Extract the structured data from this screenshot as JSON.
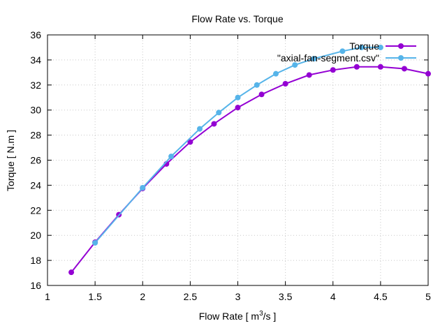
{
  "chart_data": {
    "type": "line",
    "title": "Flow Rate vs. Torque",
    "xlabel": "Flow Rate [ m³/s ]",
    "xlabel_parts": {
      "before": "Flow Rate [ m",
      "sup": "3",
      "after": "/s ]"
    },
    "ylabel": "Torque [ N.m ]",
    "xlim": [
      1,
      5
    ],
    "ylim": [
      16,
      36
    ],
    "xticks": [
      1,
      1.5,
      2,
      2.5,
      3,
      3.5,
      4,
      4.5,
      5
    ],
    "xtick_labels": [
      "1",
      "1.5",
      "2",
      "2.5",
      "3",
      "3.5",
      "4",
      "4.5",
      "5"
    ],
    "yticks": [
      16,
      18,
      20,
      22,
      24,
      26,
      28,
      30,
      32,
      34,
      36
    ],
    "ytick_labels": [
      "16",
      "18",
      "20",
      "22",
      "24",
      "26",
      "28",
      "30",
      "32",
      "34",
      "36"
    ],
    "grid": true,
    "legend_position": "top-right",
    "series": [
      {
        "name": "Torque",
        "color": "#9400d3",
        "x": [
          1.25,
          1.5,
          1.75,
          2.0,
          2.25,
          2.5,
          2.75,
          3.0,
          3.25,
          3.5,
          3.75,
          4.0,
          4.25,
          4.5,
          4.75,
          5.0
        ],
        "y": [
          17.05,
          19.45,
          21.65,
          23.75,
          25.7,
          27.45,
          28.9,
          30.2,
          31.25,
          32.1,
          32.8,
          33.2,
          33.45,
          33.45,
          33.3,
          32.9
        ]
      },
      {
        "name": "\"axial-fan-segment.csv\"",
        "color": "#56b4e9",
        "x": [
          1.5,
          2.0,
          2.3,
          2.6,
          2.8,
          3.0,
          3.2,
          3.4,
          3.6,
          3.8,
          4.1,
          4.3,
          4.5
        ],
        "y": [
          19.4,
          23.8,
          26.3,
          28.5,
          29.8,
          31.0,
          32.0,
          32.9,
          33.6,
          34.1,
          34.7,
          35.0,
          35.0
        ]
      }
    ]
  }
}
